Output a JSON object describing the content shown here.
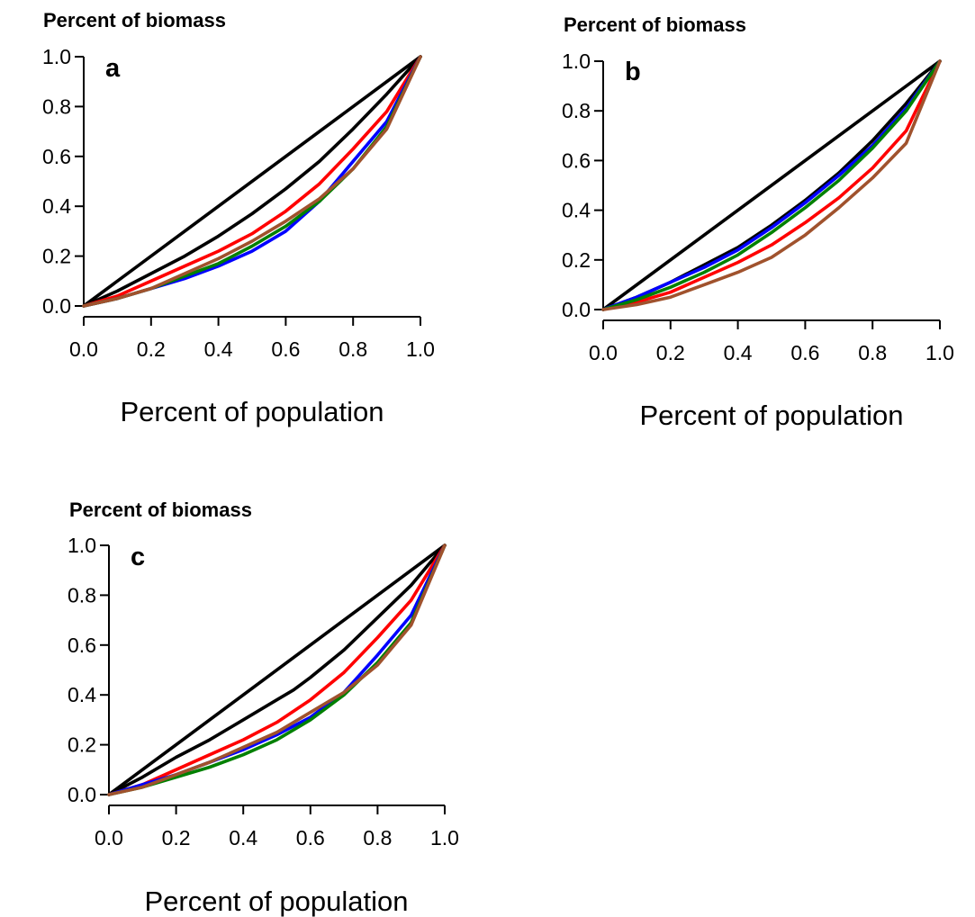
{
  "colors": {
    "black": "#000000",
    "red": "#ff0000",
    "blue": "#0000ff",
    "green": "#008000",
    "brown": "#a0522d"
  },
  "chart_data": [
    {
      "type": "line",
      "panel_label": "a",
      "ylabel": "Percent of biomass",
      "xlabel": "Percent of population",
      "xlim": [
        0,
        1
      ],
      "ylim": [
        0,
        1
      ],
      "xticks": [
        "0.0",
        "0.2",
        "0.4",
        "0.6",
        "0.8",
        "1.0"
      ],
      "yticks": [
        "0.0",
        "0.2",
        "0.4",
        "0.6",
        "0.8",
        "1.0"
      ],
      "grid": false,
      "series": [
        {
          "color": "black",
          "x": [
            0,
            1
          ],
          "y": [
            0,
            1
          ]
        },
        {
          "color": "black",
          "x": [
            0,
            0.1,
            0.2,
            0.3,
            0.4,
            0.5,
            0.6,
            0.7,
            0.8,
            0.9,
            1.0
          ],
          "y": [
            0,
            0.06,
            0.13,
            0.2,
            0.28,
            0.37,
            0.47,
            0.58,
            0.71,
            0.85,
            1.0
          ]
        },
        {
          "color": "red",
          "x": [
            0,
            0.1,
            0.2,
            0.3,
            0.4,
            0.5,
            0.6,
            0.7,
            0.8,
            0.9,
            1.0
          ],
          "y": [
            0,
            0.04,
            0.1,
            0.16,
            0.22,
            0.29,
            0.38,
            0.49,
            0.63,
            0.78,
            1.0
          ]
        },
        {
          "color": "blue",
          "x": [
            0,
            0.1,
            0.2,
            0.3,
            0.4,
            0.5,
            0.6,
            0.7,
            0.8,
            0.9,
            1.0
          ],
          "y": [
            0,
            0.03,
            0.07,
            0.11,
            0.16,
            0.22,
            0.3,
            0.42,
            0.58,
            0.74,
            1.0
          ]
        },
        {
          "color": "green",
          "x": [
            0,
            0.1,
            0.2,
            0.3,
            0.4,
            0.5,
            0.6,
            0.7,
            0.8,
            0.9,
            1.0
          ],
          "y": [
            0,
            0.03,
            0.07,
            0.12,
            0.17,
            0.24,
            0.32,
            0.42,
            0.55,
            0.72,
            1.0
          ]
        },
        {
          "color": "brown",
          "x": [
            0,
            0.1,
            0.2,
            0.3,
            0.4,
            0.5,
            0.6,
            0.7,
            0.8,
            0.9,
            1.0
          ],
          "y": [
            0,
            0.03,
            0.07,
            0.13,
            0.19,
            0.26,
            0.34,
            0.43,
            0.55,
            0.71,
            1.0
          ]
        }
      ]
    },
    {
      "type": "line",
      "panel_label": "b",
      "ylabel": "Percent of biomass",
      "xlabel": "Percent of population",
      "xlim": [
        0,
        1
      ],
      "ylim": [
        0,
        1
      ],
      "xticks": [
        "0.0",
        "0.2",
        "0.4",
        "0.6",
        "0.8",
        "1.0"
      ],
      "yticks": [
        "0.0",
        "0.2",
        "0.4",
        "0.6",
        "0.8",
        "1.0"
      ],
      "grid": false,
      "series": [
        {
          "color": "black",
          "x": [
            0,
            1
          ],
          "y": [
            0,
            1
          ]
        },
        {
          "color": "black",
          "x": [
            0,
            0.1,
            0.2,
            0.3,
            0.4,
            0.5,
            0.6,
            0.7,
            0.8,
            0.9,
            1.0
          ],
          "y": [
            0,
            0.05,
            0.11,
            0.18,
            0.25,
            0.34,
            0.44,
            0.55,
            0.68,
            0.83,
            1.0
          ]
        },
        {
          "color": "red",
          "x": [
            0,
            0.1,
            0.2,
            0.3,
            0.4,
            0.5,
            0.6,
            0.7,
            0.8,
            0.9,
            1.0
          ],
          "y": [
            0,
            0.03,
            0.07,
            0.13,
            0.19,
            0.26,
            0.35,
            0.45,
            0.57,
            0.72,
            1.0
          ]
        },
        {
          "color": "blue",
          "x": [
            0,
            0.1,
            0.2,
            0.3,
            0.4,
            0.5,
            0.6,
            0.7,
            0.8,
            0.9,
            1.0
          ],
          "y": [
            0,
            0.05,
            0.11,
            0.17,
            0.24,
            0.33,
            0.43,
            0.54,
            0.66,
            0.81,
            1.0
          ]
        },
        {
          "color": "green",
          "x": [
            0,
            0.1,
            0.2,
            0.3,
            0.4,
            0.5,
            0.6,
            0.7,
            0.8,
            0.9,
            1.0
          ],
          "y": [
            0,
            0.04,
            0.09,
            0.15,
            0.22,
            0.31,
            0.41,
            0.52,
            0.65,
            0.8,
            1.0
          ]
        },
        {
          "color": "brown",
          "x": [
            0,
            0.1,
            0.2,
            0.3,
            0.4,
            0.5,
            0.6,
            0.7,
            0.8,
            0.9,
            1.0
          ],
          "y": [
            0,
            0.02,
            0.05,
            0.1,
            0.15,
            0.21,
            0.3,
            0.41,
            0.53,
            0.67,
            1.0
          ]
        }
      ]
    },
    {
      "type": "line",
      "panel_label": "c",
      "ylabel": "Percent of biomass",
      "xlabel": "Percent of population",
      "xlim": [
        0,
        1
      ],
      "ylim": [
        0,
        1
      ],
      "xticks": [
        "0.0",
        "0.2",
        "0.4",
        "0.6",
        "0.8",
        "1.0"
      ],
      "yticks": [
        "0.0",
        "0.2",
        "0.4",
        "0.6",
        "0.8",
        "1.0"
      ],
      "grid": false,
      "series": [
        {
          "color": "black",
          "x": [
            0,
            1
          ],
          "y": [
            0,
            1
          ]
        },
        {
          "color": "black",
          "x": [
            0,
            0.1,
            0.2,
            0.3,
            0.4,
            0.5,
            0.55,
            0.6,
            0.7,
            0.8,
            0.9,
            1.0
          ],
          "y": [
            0,
            0.07,
            0.15,
            0.22,
            0.3,
            0.38,
            0.42,
            0.47,
            0.58,
            0.71,
            0.84,
            1.0
          ]
        },
        {
          "color": "red",
          "x": [
            0,
            0.1,
            0.2,
            0.3,
            0.4,
            0.5,
            0.6,
            0.7,
            0.8,
            0.9,
            1.0
          ],
          "y": [
            0,
            0.04,
            0.1,
            0.16,
            0.22,
            0.29,
            0.38,
            0.49,
            0.63,
            0.78,
            1.0
          ]
        },
        {
          "color": "blue",
          "x": [
            0,
            0.1,
            0.2,
            0.3,
            0.4,
            0.5,
            0.6,
            0.7,
            0.8,
            0.9,
            1.0
          ],
          "y": [
            0,
            0.04,
            0.08,
            0.13,
            0.18,
            0.24,
            0.31,
            0.41,
            0.56,
            0.72,
            1.0
          ]
        },
        {
          "color": "green",
          "x": [
            0,
            0.1,
            0.2,
            0.3,
            0.4,
            0.5,
            0.6,
            0.7,
            0.8,
            0.9,
            1.0
          ],
          "y": [
            0,
            0.03,
            0.07,
            0.11,
            0.16,
            0.22,
            0.3,
            0.4,
            0.53,
            0.69,
            1.0
          ]
        },
        {
          "color": "brown",
          "x": [
            0,
            0.1,
            0.2,
            0.3,
            0.4,
            0.5,
            0.6,
            0.7,
            0.8,
            0.9,
            1.0
          ],
          "y": [
            0,
            0.03,
            0.08,
            0.13,
            0.19,
            0.25,
            0.33,
            0.41,
            0.52,
            0.68,
            1.0
          ]
        }
      ]
    }
  ]
}
